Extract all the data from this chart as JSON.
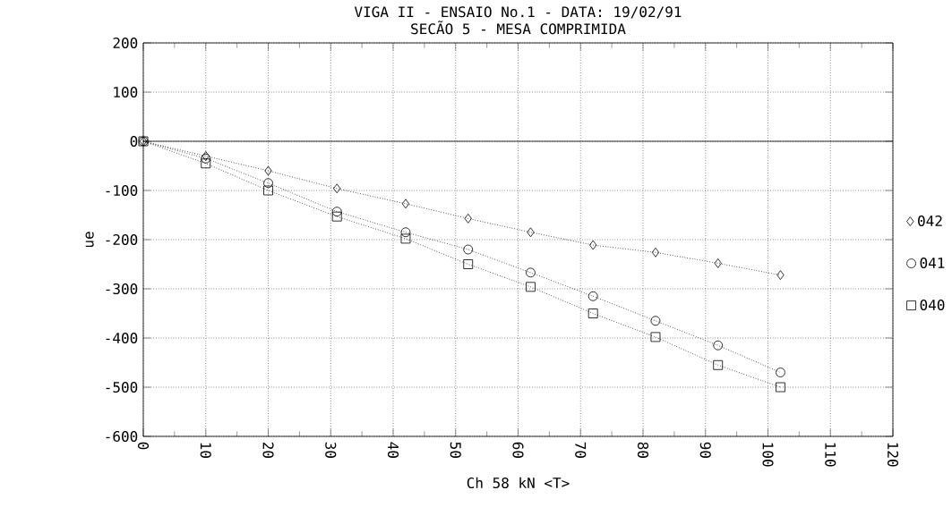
{
  "chart_data": {
    "type": "line",
    "title": "VIGA II - ENSAIO No.1 - DATA: 19/02/91",
    "subtitle": "SECÃO 5 - MESA COMPRIMIDA",
    "xlabel": "Ch 58 kN  <T>",
    "ylabel": "ue",
    "x": [
      0,
      10,
      20,
      31,
      42,
      52,
      62,
      72,
      82,
      92,
      102
    ],
    "series": [
      {
        "name": "040",
        "color": "#000000",
        "marker": "square",
        "values": [
          0,
          -45,
          -100,
          -153,
          -198,
          -250,
          -296,
          -350,
          -398,
          -455,
          -500
        ]
      },
      {
        "name": "041",
        "color": "#000000",
        "marker": "circle",
        "values": [
          0,
          -35,
          -85,
          -143,
          -185,
          -220,
          -267,
          -315,
          -365,
          -415,
          -470
        ]
      },
      {
        "name": "042",
        "color": "#000000",
        "marker": "diamond",
        "values": [
          0,
          -30,
          -60,
          -96,
          -127,
          -157,
          -185,
          -211,
          -226,
          -248,
          -272
        ]
      }
    ],
    "xlim": [
      0,
      120
    ],
    "ylim": [
      -600,
      200
    ],
    "xticks": [
      0,
      10,
      20,
      30,
      40,
      50,
      60,
      70,
      80,
      90,
      100,
      110,
      120
    ],
    "yticks": [
      -600,
      -500,
      -400,
      -300,
      -200,
      -100,
      0,
      100,
      200
    ],
    "ref_lines": [
      {
        "axis": "y",
        "value": 0,
        "color": "#000000",
        "line_style": "solid"
      }
    ],
    "grid": true,
    "legend": "right",
    "line_style": "dotted"
  }
}
